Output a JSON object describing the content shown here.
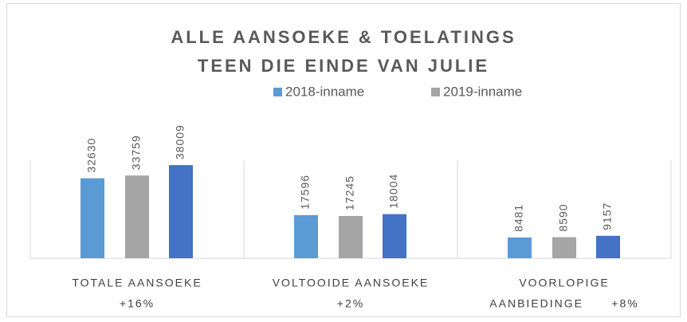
{
  "chart_data": {
    "type": "bar",
    "title": [
      "ALLE AANSOEKE & TOELATINGS",
      "TEEN DIE EINDE VAN JULIE"
    ],
    "categories": [
      [
        "TOTALE AANSOEKE",
        "+16%"
      ],
      [
        "VOLTOOIDE AANSOEKE",
        "+2%"
      ],
      [
        "VOORLOPIGE",
        "AANBIEDINGE      +8%"
      ]
    ],
    "series": [
      {
        "name": "2018-inname",
        "color": "#5b9bd5",
        "values": [
          32630,
          17596,
          8481
        ]
      },
      {
        "name": "2019-inname",
        "color": "#a5a5a5",
        "values": [
          33759,
          17245,
          8590
        ]
      },
      {
        "color": "#4472c4",
        "values": [
          38009,
          18004,
          9157
        ]
      }
    ],
    "ylim": [
      0,
      40000
    ],
    "legend": "top"
  }
}
